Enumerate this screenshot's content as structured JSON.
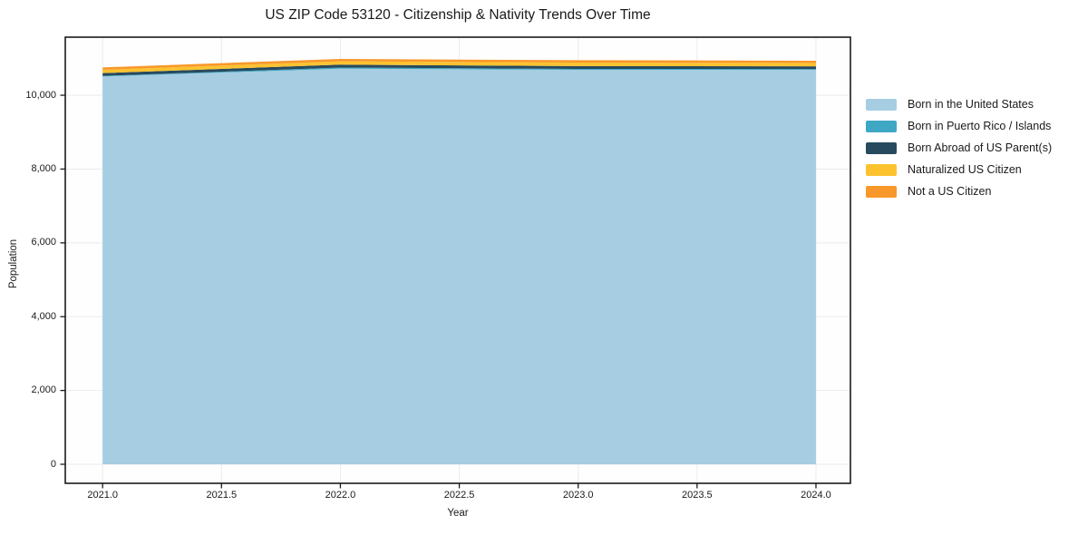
{
  "chart_data": {
    "type": "area",
    "stacked": true,
    "title": "US ZIP Code 53120 - Citizenship & Nativity Trends Over Time",
    "xlabel": "Year",
    "ylabel": "Population",
    "x": [
      2021,
      2022,
      2023,
      2024
    ],
    "series": [
      {
        "name": "Born in the United States",
        "color": "#a6cde2",
        "values": [
          10510,
          10720,
          10690,
          10690
        ]
      },
      {
        "name": "Born in Puerto Rico / Islands",
        "color": "#3ea7c3",
        "values": [
          15,
          30,
          25,
          20
        ]
      },
      {
        "name": "Born Abroad of US Parent(s)",
        "color": "#284a5e",
        "values": [
          75,
          80,
          75,
          75
        ]
      },
      {
        "name": "Naturalized US Citizen",
        "color": "#fcc32f",
        "values": [
          90,
          90,
          95,
          90
        ]
      },
      {
        "name": "Not a US Citizen",
        "color": "#f8982a",
        "values": [
          65,
          65,
          65,
          60
        ]
      }
    ],
    "xlim": [
      2020.843,
      2024.145
    ],
    "ylim": [
      -516,
      11574
    ],
    "x_ticks": [
      2021.0,
      2021.5,
      2022.0,
      2022.5,
      2023.0,
      2023.5,
      2024.0
    ],
    "x_tick_labels": [
      "2021.0",
      "2021.5",
      "2022.0",
      "2022.5",
      "2023.0",
      "2023.5",
      "2024.0"
    ],
    "y_ticks": [
      0,
      2000,
      4000,
      6000,
      8000,
      10000
    ],
    "y_tick_labels": [
      "0",
      "2,000",
      "4,000",
      "6,000",
      "8,000",
      "10,000"
    ],
    "grid": true,
    "legend_position": "right",
    "colors": {
      "axis": "#1a1a1a",
      "grid": "#ebebee",
      "background": "#fefefe"
    }
  }
}
